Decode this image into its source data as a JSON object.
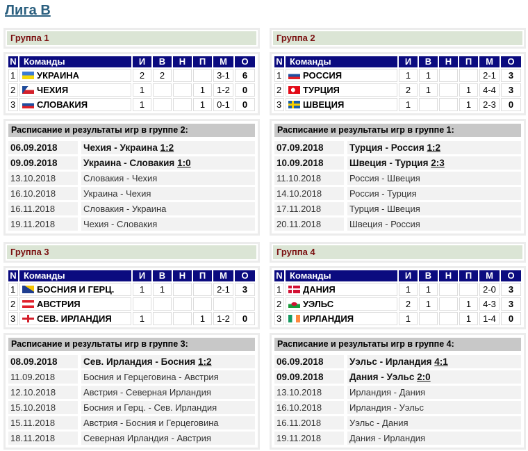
{
  "title": "Лига B",
  "headers": {
    "n": "N",
    "team": "Команды",
    "i": "И",
    "v": "В",
    "nn": "Н",
    "p": "П",
    "m": "М",
    "o": "О"
  },
  "groups": [
    {
      "name": "Группа 1",
      "schedule_title": "Расписание и результаты игр в группе 2:",
      "teams": [
        {
          "pos": "1",
          "flag": "ua",
          "name": "УКРАИНА",
          "i": "2",
          "v": "2",
          "n": "",
          "p": "",
          "m": "3-1",
          "o": "6"
        },
        {
          "pos": "2",
          "flag": "cz",
          "name": "ЧЕХИЯ",
          "i": "1",
          "v": "",
          "n": "",
          "p": "1",
          "m": "1-2",
          "o": "0"
        },
        {
          "pos": "3",
          "flag": "sk",
          "name": "СЛОВАКИЯ",
          "i": "1",
          "v": "",
          "n": "",
          "p": "1",
          "m": "0-1",
          "o": "0"
        }
      ],
      "matches": [
        {
          "date": "06.09.2018",
          "match": "Чехия - Украина",
          "result": "1:2"
        },
        {
          "date": "09.09.2018",
          "match": "Украина - Словакия",
          "result": "1:0"
        },
        {
          "date": "13.10.2018",
          "match": "Словакия - Чехия",
          "result": ""
        },
        {
          "date": "16.10.2018",
          "match": "Украина - Чехия",
          "result": ""
        },
        {
          "date": "16.11.2018",
          "match": "Словакия - Украина",
          "result": ""
        },
        {
          "date": "19.11.2018",
          "match": "Чехия - Словакия",
          "result": ""
        }
      ]
    },
    {
      "name": "Группа 2",
      "schedule_title": "Расписание и результаты игр в группе 1:",
      "teams": [
        {
          "pos": "1",
          "flag": "ru",
          "name": "РОССИЯ",
          "i": "1",
          "v": "1",
          "n": "",
          "p": "",
          "m": "2-1",
          "o": "3"
        },
        {
          "pos": "2",
          "flag": "tr",
          "name": "ТУРЦИЯ",
          "i": "2",
          "v": "1",
          "n": "",
          "p": "1",
          "m": "4-4",
          "o": "3"
        },
        {
          "pos": "3",
          "flag": "se",
          "name": "ШВЕЦИЯ",
          "i": "1",
          "v": "",
          "n": "",
          "p": "1",
          "m": "2-3",
          "o": "0"
        }
      ],
      "matches": [
        {
          "date": "07.09.2018",
          "match": "Турция - Россия",
          "result": "1:2"
        },
        {
          "date": "10.09.2018",
          "match": "Швеция - Турция",
          "result": "2:3"
        },
        {
          "date": "11.10.2018",
          "match": "Россия - Швеция",
          "result": ""
        },
        {
          "date": "14.10.2018",
          "match": "Россия - Турция",
          "result": ""
        },
        {
          "date": "17.11.2018",
          "match": "Турция - Швеция",
          "result": ""
        },
        {
          "date": "20.11.2018",
          "match": "Швеция - Россия",
          "result": ""
        }
      ]
    },
    {
      "name": "Группа 3",
      "schedule_title": "Расписание и результаты игр в группе 3:",
      "teams": [
        {
          "pos": "1",
          "flag": "ba",
          "name": "БОСНИЯ И ГЕРЦ.",
          "i": "1",
          "v": "1",
          "n": "",
          "p": "",
          "m": "2-1",
          "o": "3"
        },
        {
          "pos": "2",
          "flag": "at",
          "name": "АВСТРИЯ",
          "i": "",
          "v": "",
          "n": "",
          "p": "",
          "m": "",
          "o": ""
        },
        {
          "pos": "3",
          "flag": "ni",
          "name": "СЕВ. ИРЛАНДИЯ",
          "i": "1",
          "v": "",
          "n": "",
          "p": "1",
          "m": "1-2",
          "o": "0"
        }
      ],
      "matches": [
        {
          "date": "08.09.2018",
          "match": "Сев. Ирландия - Босния",
          "result": "1:2"
        },
        {
          "date": "11.09.2018",
          "match": "Босния и Герцеговина - Австрия",
          "result": ""
        },
        {
          "date": "12.10.2018",
          "match": "Австрия - Северная Ирландия",
          "result": ""
        },
        {
          "date": "15.10.2018",
          "match": "Босния и Герц. - Сев. Ирландия",
          "result": ""
        },
        {
          "date": "15.11.2018",
          "match": "Австрия - Босния и Герцеговина",
          "result": ""
        },
        {
          "date": "18.11.2018",
          "match": "Северная Ирландия - Австрия",
          "result": ""
        }
      ]
    },
    {
      "name": "Группа 4",
      "schedule_title": "Расписание и результаты игр в группе 4:",
      "teams": [
        {
          "pos": "1",
          "flag": "dk",
          "name": "ДАНИЯ",
          "i": "1",
          "v": "1",
          "n": "",
          "p": "",
          "m": "2-0",
          "o": "3"
        },
        {
          "pos": "2",
          "flag": "wl",
          "name": "УЭЛЬС",
          "i": "2",
          "v": "1",
          "n": "",
          "p": "1",
          "m": "4-3",
          "o": "3"
        },
        {
          "pos": "3",
          "flag": "ie",
          "name": "ИРЛАНДИЯ",
          "i": "1",
          "v": "",
          "n": "",
          "p": "1",
          "m": "1-4",
          "o": "0"
        }
      ],
      "matches": [
        {
          "date": "06.09.2018",
          "match": "Уэльс - Ирландия",
          "result": "4:1"
        },
        {
          "date": "09.09.2018",
          "match": "Дания - Уэльс",
          "result": "2:0"
        },
        {
          "date": "13.10.2018",
          "match": "Ирландия - Дания",
          "result": ""
        },
        {
          "date": "16.10.2018",
          "match": "Ирландия - Уэльс",
          "result": ""
        },
        {
          "date": "16.11.2018",
          "match": "Уэльс - Дания",
          "result": ""
        },
        {
          "date": "19.11.2018",
          "match": "Дания - Ирландия",
          "result": ""
        }
      ]
    }
  ]
}
